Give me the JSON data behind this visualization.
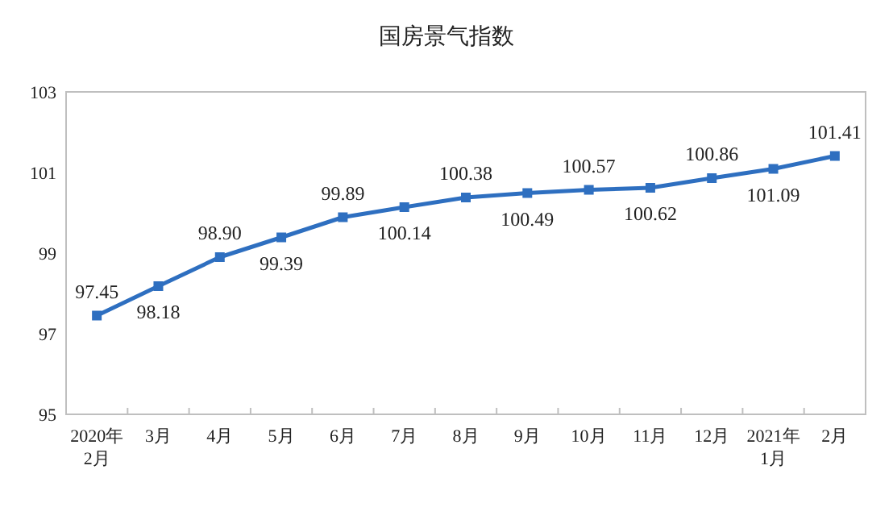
{
  "chart_data": {
    "type": "line",
    "title": "国房景气指数",
    "categories": [
      "2020年\n2月",
      "3月",
      "4月",
      "5月",
      "6月",
      "7月",
      "8月",
      "9月",
      "10月",
      "11月",
      "12月",
      "2021年\n1月",
      "2月"
    ],
    "series": [
      {
        "color": "#2e6fc0",
        "values": [
          97.45,
          98.18,
          98.9,
          99.39,
          99.89,
          100.14,
          100.38,
          100.49,
          100.57,
          100.62,
          100.86,
          101.09,
          101.41
        ],
        "value_labels": [
          "97.45",
          "98.18",
          "98.90",
          "99.39",
          "99.89",
          "100.14",
          "100.38",
          "100.49",
          "100.57",
          "100.62",
          "100.86",
          "101.09",
          "101.41"
        ]
      }
    ],
    "ylim": [
      95,
      103
    ],
    "yticks": [
      95,
      97,
      99,
      101,
      103
    ],
    "marker": "square",
    "line_style": "solid",
    "grid": false
  }
}
